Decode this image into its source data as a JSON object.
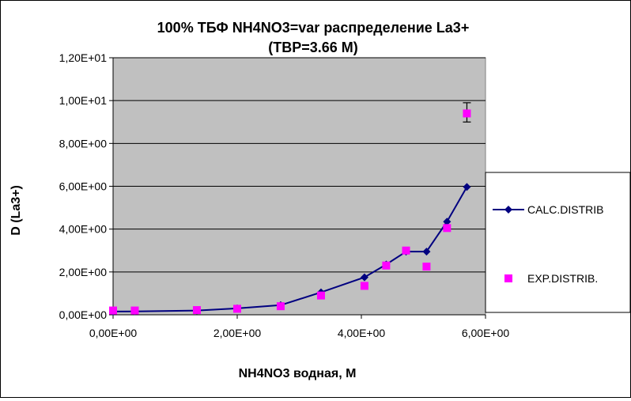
{
  "chart_data": {
    "type": "scatter",
    "title": "100%  ТБФ  NH4NO3=var распределение La3+",
    "subtitle": "(TBP=3.66 M)",
    "xlabel": "NH4NO3  водная, М",
    "ylabel": "D (La3+)",
    "xlim": [
      0,
      6
    ],
    "ylim": [
      0,
      12
    ],
    "x_ticks": [
      "0,00E+00",
      "2,00E+00",
      "4,00E+00",
      "6,00E+00"
    ],
    "y_ticks": [
      "0,00E+00",
      "2,00E+00",
      "4,00E+00",
      "6,00E+00",
      "8,00E+00",
      "1,00E+01",
      "1,20E+01"
    ],
    "grid": "horizontal",
    "legend_position": "right",
    "colors": {
      "plot_bg": "#c0c0c0",
      "calc": "#000080",
      "exp": "#ff00ff"
    },
    "series": [
      {
        "name": "CALC.DISTRIB",
        "style": "line-diamond",
        "x": [
          0,
          0.35,
          1.35,
          2.0,
          2.7,
          3.35,
          4.05,
          4.4,
          4.72,
          5.05,
          5.38,
          5.7
        ],
        "y": [
          0.15,
          0.16,
          0.2,
          0.3,
          0.45,
          1.05,
          1.75,
          2.35,
          2.95,
          2.95,
          4.35,
          5.97
        ]
      },
      {
        "name": "EXP.DISTRIB.",
        "style": "square-marker",
        "x": [
          0,
          0.35,
          1.35,
          2.0,
          2.7,
          3.35,
          4.05,
          4.4,
          4.72,
          5.05,
          5.38,
          5.7
        ],
        "y": [
          0.2,
          0.2,
          0.22,
          0.28,
          0.4,
          0.9,
          1.35,
          2.3,
          3.0,
          2.25,
          4.05,
          9.4
        ],
        "error_bar": {
          "x": 5.7,
          "low": 9.0,
          "high": 9.9
        }
      }
    ]
  }
}
